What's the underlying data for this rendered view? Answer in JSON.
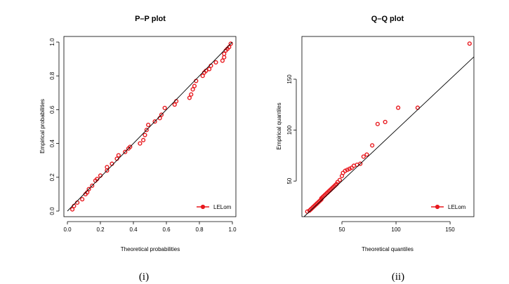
{
  "series_color": "#e8191e",
  "chart_data": [
    {
      "type": "scatter",
      "title": "P–P plot",
      "xlabel": "Theoretical probabilities",
      "ylabel": "Empirical probabilities",
      "xlim": [
        0.0,
        1.0
      ],
      "ylim": [
        0.0,
        1.0
      ],
      "xticks": [
        0.0,
        0.2,
        0.4,
        0.6,
        0.8,
        1.0
      ],
      "xtick_labels": [
        "0.0",
        "0.2",
        "0.4",
        "0.6",
        "0.8",
        "1.0"
      ],
      "yticks": [
        0.0,
        0.2,
        0.4,
        0.6,
        0.8,
        1.0
      ],
      "ytick_labels": [
        "0.0",
        "0.2",
        "0.4",
        "0.6",
        "0.8",
        "1.0"
      ],
      "reference_line": "y = x",
      "legend": "LELom",
      "legend_position": "bottom-right",
      "caption": "(i)",
      "series": [
        {
          "name": "LELom",
          "x": [
            0.03,
            0.04,
            0.06,
            0.09,
            0.11,
            0.12,
            0.13,
            0.15,
            0.17,
            0.18,
            0.2,
            0.24,
            0.24,
            0.27,
            0.3,
            0.31,
            0.35,
            0.37,
            0.38,
            0.44,
            0.46,
            0.47,
            0.48,
            0.49,
            0.53,
            0.56,
            0.57,
            0.59,
            0.65,
            0.66,
            0.74,
            0.75,
            0.76,
            0.77,
            0.78,
            0.82,
            0.83,
            0.84,
            0.86,
            0.87,
            0.9,
            0.94,
            0.95,
            0.95,
            0.96,
            0.97,
            0.98,
            0.99
          ],
          "y": [
            0.01,
            0.03,
            0.05,
            0.07,
            0.1,
            0.11,
            0.13,
            0.15,
            0.18,
            0.19,
            0.21,
            0.24,
            0.26,
            0.28,
            0.31,
            0.33,
            0.35,
            0.37,
            0.38,
            0.4,
            0.42,
            0.45,
            0.48,
            0.51,
            0.53,
            0.55,
            0.57,
            0.61,
            0.63,
            0.65,
            0.67,
            0.69,
            0.72,
            0.74,
            0.77,
            0.8,
            0.82,
            0.83,
            0.84,
            0.86,
            0.88,
            0.89,
            0.91,
            0.93,
            0.95,
            0.96,
            0.97,
            0.99
          ]
        }
      ]
    },
    {
      "type": "scatter",
      "title": "Q–Q plot",
      "xlabel": "Theoretical quantiles",
      "ylabel": "Empirical quantiles",
      "xlim": [
        13,
        172
      ],
      "ylim": [
        15,
        192
      ],
      "xticks": [
        50,
        100,
        150
      ],
      "xtick_labels": [
        "50",
        "100",
        "150"
      ],
      "yticks": [
        50,
        100,
        150
      ],
      "ytick_labels": [
        "50",
        "100",
        "150"
      ],
      "reference_line": "y = x",
      "legend": "LELom",
      "legend_position": "bottom-right",
      "caption": "(ii)",
      "series": [
        {
          "name": "LELom",
          "x": [
            18,
            20,
            21,
            22,
            23,
            24,
            25,
            26,
            27,
            28,
            29,
            30,
            31,
            31,
            32,
            33,
            34,
            35,
            36,
            37,
            38,
            39,
            40,
            41,
            42,
            43,
            44,
            45,
            46,
            48,
            50,
            51,
            53,
            55,
            57,
            59,
            61,
            64,
            67,
            70,
            73,
            78,
            83,
            90,
            102,
            120,
            168
          ],
          "y": [
            20,
            21,
            22,
            23,
            24,
            25,
            26,
            27,
            28,
            29,
            30,
            31,
            32,
            33,
            34,
            35,
            36,
            37,
            38,
            39,
            40,
            41,
            42,
            43,
            44,
            45,
            46,
            47,
            49,
            51,
            55,
            58,
            60,
            61,
            62,
            63,
            65,
            66,
            67,
            74,
            76,
            85,
            106,
            108,
            122,
            122,
            185
          ]
        }
      ]
    }
  ]
}
